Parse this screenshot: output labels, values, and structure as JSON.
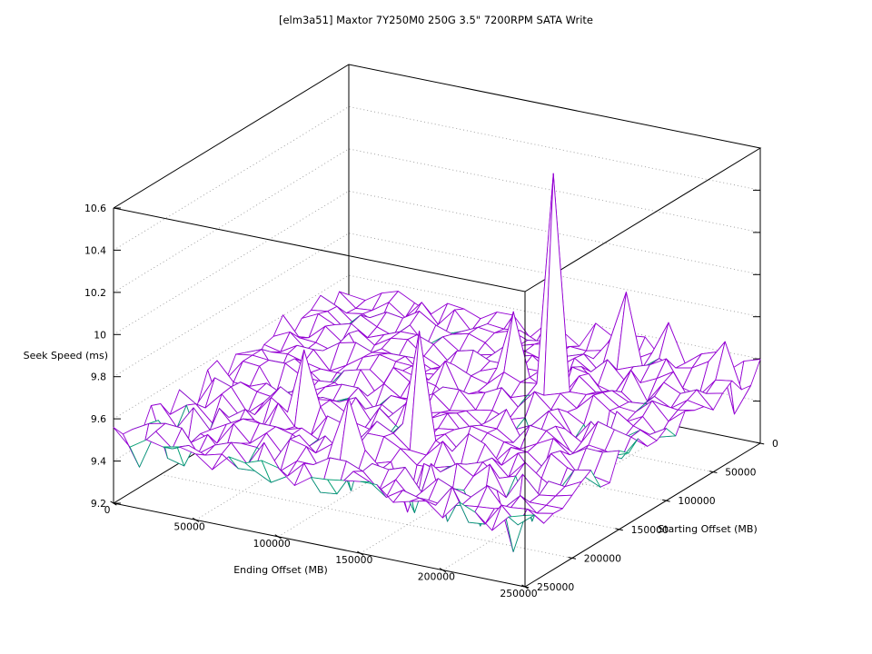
{
  "chart_data": {
    "type": "surface3d",
    "title": "[elm3a51] Maxtor 7Y250M0 250G 3.5\" 7200RPM SATA Write",
    "xlabel": "Ending Offset (MB)",
    "ylabel": "Starting Offset (MB)",
    "zlabel": "Seek Speed (ms)",
    "xlim": [
      0,
      250000
    ],
    "ylim": [
      0,
      250000
    ],
    "zlim": [
      9.2,
      10.6
    ],
    "xticks": [
      0,
      50000,
      100000,
      150000,
      200000,
      250000
    ],
    "yticks": [
      0,
      50000,
      100000,
      150000,
      200000,
      250000
    ],
    "zticks": [
      9.2,
      9.4,
      9.6,
      9.8,
      10,
      10.2,
      10.4,
      10.6
    ],
    "grid_lines": "dotted on back walls and floor",
    "mesh_step_mb": 10000,
    "surface_model": {
      "base_level": 9.53,
      "x_tilt": 0.035,
      "xy_sag": 0.05,
      "wave_amp": 0.028,
      "noise_amp": 0.065,
      "noise_seed": 1337,
      "z_floor": 9.21,
      "z_ceiling": 10.58
    },
    "peaks": [
      {
        "x": 170000,
        "y": 80000,
        "z": 10.57
      },
      {
        "x": 140000,
        "y": 170000,
        "z": 10.02
      },
      {
        "x": 140000,
        "y": 70000,
        "z": 9.84
      },
      {
        "x": 120000,
        "y": 210000,
        "z": 9.78
      },
      {
        "x": 70000,
        "y": 170000,
        "z": 9.82
      },
      {
        "x": 200000,
        "y": 10000,
        "z": 9.72
      },
      {
        "x": 180000,
        "y": 20000,
        "z": 9.86
      },
      {
        "x": 240000,
        "y": 20000,
        "z": 9.72
      }
    ],
    "dips": [
      {
        "x": 0,
        "y": 170000,
        "z": 9.34
      },
      {
        "x": 20000,
        "y": 190000,
        "z": 9.3
      },
      {
        "x": 10000,
        "y": 210000,
        "z": 9.32
      },
      {
        "x": 20000,
        "y": 210000,
        "z": 9.3
      },
      {
        "x": 10000,
        "y": 240000,
        "z": 9.36
      },
      {
        "x": 10000,
        "y": 150000,
        "z": 9.35
      },
      {
        "x": 110000,
        "y": 190000,
        "z": 9.27
      },
      {
        "x": 150000,
        "y": 200000,
        "z": 9.26
      },
      {
        "x": 160000,
        "y": 210000,
        "z": 9.3
      },
      {
        "x": 180000,
        "y": 210000,
        "z": 9.29
      },
      {
        "x": 200000,
        "y": 210000,
        "z": 9.3
      },
      {
        "x": 220000,
        "y": 210000,
        "z": 9.21
      },
      {
        "x": 220000,
        "y": 190000,
        "z": 9.3
      },
      {
        "x": 180000,
        "y": 110000,
        "z": 9.3
      },
      {
        "x": 210000,
        "y": 100000,
        "z": 9.32
      },
      {
        "x": 210000,
        "y": 0,
        "z": 9.35
      },
      {
        "x": 240000,
        "y": 10000,
        "z": 9.35
      }
    ],
    "colors": {
      "surface_top": "#9400d3",
      "surface_underside": "#009e73",
      "frame": "#000000",
      "grid": "#9b9b9b",
      "text": "#000000",
      "background": "#ffffff"
    }
  }
}
